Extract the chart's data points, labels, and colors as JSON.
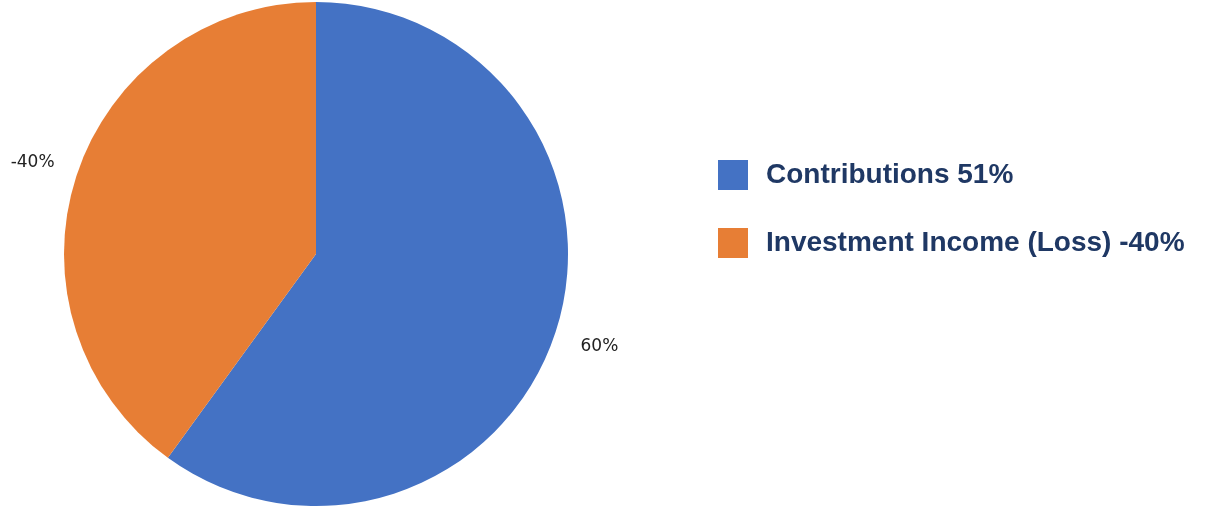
{
  "chart_data": {
    "type": "pie",
    "categories": [
      "Contributions 51%",
      "Investment Income (Loss) -40%"
    ],
    "values": [
      60,
      40
    ],
    "annotations": [
      "60%",
      "-40%"
    ],
    "colors": [
      "#4472c4",
      "#e77e35"
    ],
    "legend": "right"
  }
}
